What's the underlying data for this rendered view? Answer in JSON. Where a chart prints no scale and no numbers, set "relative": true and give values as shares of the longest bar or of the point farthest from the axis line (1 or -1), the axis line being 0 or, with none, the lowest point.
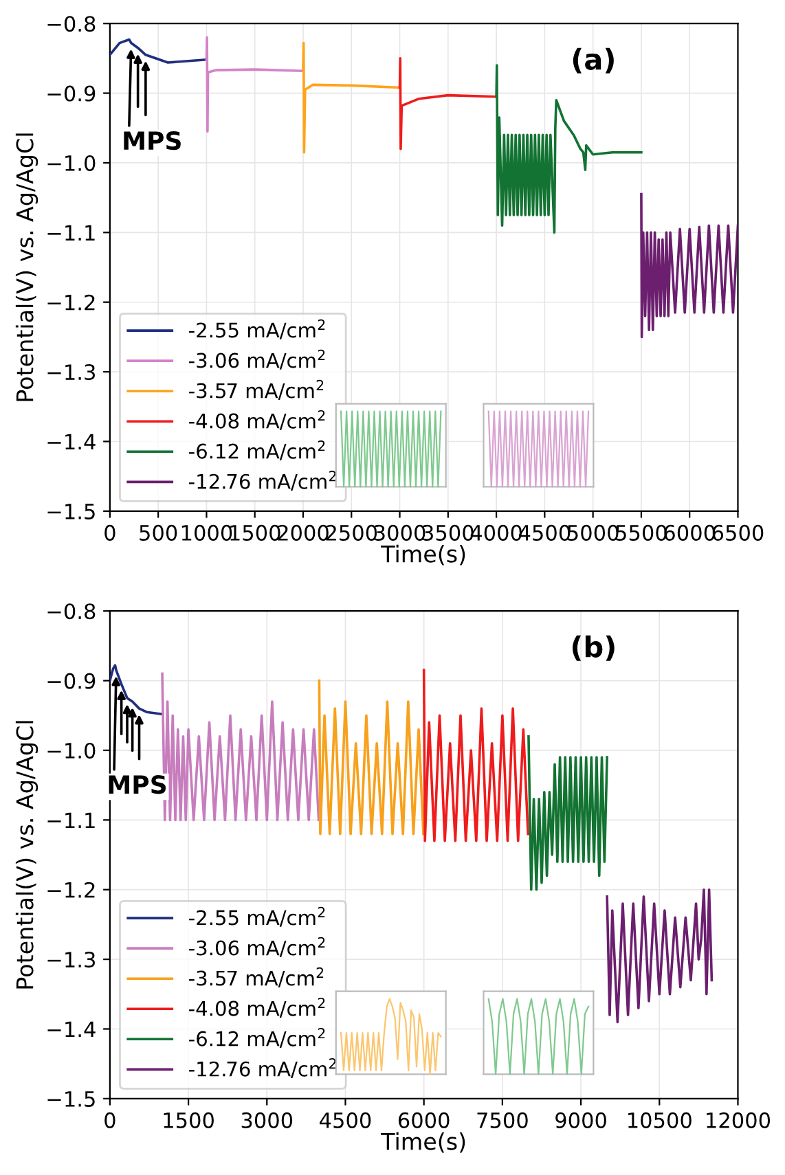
{
  "chart_data": [
    {
      "type": "line",
      "xlabel": "Time(s)",
      "ylabel": "Potential(V) vs. Ag/AgCl",
      "xlim": [
        0,
        6500
      ],
      "ylim": [
        -1.5,
        -0.8
      ],
      "xticks": [
        0,
        500,
        1000,
        1500,
        2000,
        2500,
        3000,
        3500,
        4000,
        4500,
        5000,
        5500,
        6000,
        6500
      ],
      "yticks": [
        -1.5,
        -1.4,
        -1.3,
        -1.2,
        -1.1,
        {
          "value": -1.0,
          "label": "−1.0"
        },
        -0.9,
        -0.8
      ],
      "grid": true,
      "legend": "bottom left",
      "annotations": [
        "(a)",
        {
          "text": "MPS",
          "x": 220,
          "y": -0.828
        }
      ],
      "series": [
        {
          "name": "-2.55 mA/cm$^{2}$",
          "color": "#1f2f7f",
          "x": [
            0,
            100,
            200,
            220,
            290,
            370,
            600,
            990
          ],
          "values": [
            -0.845,
            -0.828,
            -0.823,
            -0.828,
            -0.835,
            -0.845,
            -0.856,
            -0.852
          ]
        },
        {
          "name": "-3.06 mA/cm$^{2}$",
          "color": "#d383c8",
          "x": [
            1000,
            1005,
            1010,
            1015,
            1100,
            1500,
            1990
          ],
          "values": [
            -0.852,
            -0.82,
            -0.955,
            -0.87,
            -0.867,
            -0.866,
            -0.868
          ]
        },
        {
          "name": "-3.57 mA/cm$^{2}$",
          "color": "#ffa31a",
          "x": [
            2000,
            2005,
            2010,
            2020,
            2100,
            2500,
            2990
          ],
          "values": [
            -0.867,
            -0.828,
            -0.985,
            -0.895,
            -0.888,
            -0.889,
            -0.892
          ]
        },
        {
          "name": "-4.08 mA/cm$^{2}$",
          "color": "#ee1c1c",
          "x": [
            3000,
            3005,
            3010,
            3020,
            3200,
            3500,
            3990
          ],
          "values": [
            -0.892,
            -0.85,
            -0.98,
            -0.918,
            -0.908,
            -0.903,
            -0.905
          ]
        },
        {
          "name": "-6.12 mA/cm$^{2}$",
          "color": "#137333",
          "x": [
            4000,
            4005,
            4015,
            4030,
            4060,
            4080,
            4100,
            4120,
            4140,
            4160,
            4180,
            4200,
            4220,
            4240,
            4260,
            4280,
            4300,
            4320,
            4340,
            4360,
            4380,
            4400,
            4420,
            4440,
            4460,
            4480,
            4500,
            4520,
            4540,
            4560,
            4600,
            4610,
            4620,
            4700,
            4800,
            4870,
            4900,
            4920,
            4930,
            5000,
            5200,
            5500
          ],
          "values": [
            -0.905,
            -0.86,
            -1.075,
            -0.935,
            -1.09,
            -0.96,
            -1.075,
            -0.96,
            -1.075,
            -0.96,
            -1.075,
            -0.96,
            -1.075,
            -0.96,
            -1.075,
            -0.96,
            -1.075,
            -0.96,
            -1.075,
            -0.96,
            -1.075,
            -0.96,
            -1.075,
            -0.96,
            -1.075,
            -0.96,
            -1.075,
            -0.96,
            -1.075,
            -0.96,
            -1.1,
            -0.95,
            -0.91,
            -0.94,
            -0.96,
            -0.98,
            -0.985,
            -1.01,
            -0.975,
            -0.988,
            -0.985,
            -0.985
          ]
        },
        {
          "name": "-12.76 mA/cm$^{2}$",
          "color": "#6b1f6e",
          "x": [
            5500,
            5505,
            5520,
            5540,
            5560,
            5580,
            5600,
            5620,
            5640,
            5660,
            5680,
            5700,
            5720,
            5740,
            5760,
            5780,
            5800,
            5850,
            5900,
            5950,
            6000,
            6050,
            6100,
            6150,
            6200,
            6250,
            6300,
            6350,
            6400,
            6450,
            6500
          ],
          "values": [
            -1.045,
            -1.25,
            -1.1,
            -1.22,
            -1.1,
            -1.24,
            -1.1,
            -1.24,
            -1.1,
            -1.22,
            -1.11,
            -1.22,
            -1.11,
            -1.22,
            -1.1,
            -1.22,
            -1.1,
            -1.215,
            -1.095,
            -1.215,
            -1.095,
            -1.215,
            -1.092,
            -1.215,
            -1.09,
            -1.215,
            -1.09,
            -1.215,
            -1.09,
            -1.215,
            -1.09
          ]
        }
      ]
    },
    {
      "type": "line",
      "relative": true,
      "categories": [
        null,
        null,
        null,
        null,
        null,
        null,
        null,
        null,
        null,
        null,
        null,
        null,
        null,
        null,
        null,
        null,
        null,
        null,
        null,
        null,
        null,
        null,
        null,
        null,
        null,
        null,
        null,
        null,
        null,
        null,
        null,
        null,
        null,
        null,
        null,
        null,
        null
      ],
      "series": [
        {
          "color": "#7fc98f",
          "values": [
            1,
            0,
            1,
            0,
            1,
            0,
            1,
            0,
            1,
            0,
            1,
            0,
            1,
            0,
            1,
            0,
            1,
            0,
            1,
            0,
            1,
            0,
            1,
            0,
            1,
            0,
            1,
            0,
            1,
            0,
            1,
            0,
            1,
            0,
            1,
            0,
            1
          ]
        }
      ]
    },
    {
      "type": "line",
      "relative": true,
      "categories": [
        null,
        null,
        null,
        null,
        null,
        null,
        null,
        null,
        null,
        null,
        null,
        null,
        null,
        null,
        null,
        null,
        null,
        null,
        null,
        null,
        null,
        null,
        null,
        null,
        null,
        null,
        null,
        null,
        null,
        null,
        null,
        null,
        null,
        null,
        null,
        null,
        null
      ],
      "series": [
        {
          "color": "#d9a3d2",
          "values": [
            1,
            0,
            1,
            0,
            1,
            0,
            1,
            0,
            1,
            0,
            1,
            0,
            1,
            0,
            1,
            0,
            1,
            0,
            1,
            0,
            1,
            0,
            1,
            0,
            1,
            0,
            1,
            0,
            1,
            0,
            1,
            0,
            1,
            0,
            1,
            0,
            1
          ]
        }
      ]
    },
    {
      "type": "line",
      "xlabel": "Time(s)",
      "ylabel": "Potential(V) vs. Ag/AgCl",
      "xlim": [
        0,
        12000
      ],
      "ylim": [
        -1.5,
        -0.8
      ],
      "xticks": [
        0,
        1500,
        3000,
        4500,
        6000,
        7500,
        9000,
        10500,
        12000
      ],
      "yticks": [
        -1.5,
        -1.4,
        -1.3,
        -1.2,
        -1.1,
        {
          "value": -1.0,
          "label": "−1.0"
        },
        -0.9,
        -0.8
      ],
      "grid": true,
      "legend": "bottom left",
      "annotations": [
        "(b)",
        {
          "text": "MPS",
          "x": 120,
          "y": -0.885
        }
      ],
      "series": [
        {
          "name": "-2.55 mA/cm$^{2}$",
          "color": "#1f2f7f",
          "x": [
            0,
            60,
            100,
            120,
            220,
            330,
            430,
            560,
            700,
            990
          ],
          "values": [
            -0.9,
            -0.883,
            -0.878,
            -0.885,
            -0.905,
            -0.925,
            -0.93,
            -0.94,
            -0.945,
            -0.948
          ]
        },
        {
          "name": "-3.06 mA/cm$^{2}$",
          "color": "#c77dbd",
          "x": [
            1000,
            1050,
            1100,
            1150,
            1200,
            1250,
            1300,
            1350,
            1400,
            1450,
            1500,
            1600,
            1700,
            1800,
            1900,
            2000,
            2100,
            2200,
            2300,
            2400,
            2500,
            2600,
            2700,
            2800,
            2900,
            3000,
            3100,
            3200,
            3300,
            3400,
            3500,
            3600,
            3700,
            3800,
            3900,
            3990
          ],
          "values": [
            -0.89,
            -1.1,
            -0.93,
            -1.1,
            -0.95,
            -1.1,
            -0.97,
            -1.1,
            -0.98,
            -1.1,
            -0.97,
            -1.1,
            -0.98,
            -1.1,
            -0.96,
            -1.1,
            -0.98,
            -1.1,
            -0.95,
            -1.1,
            -0.97,
            -1.1,
            -0.98,
            -1.1,
            -0.95,
            -1.1,
            -0.93,
            -1.1,
            -0.96,
            -1.1,
            -0.97,
            -1.1,
            -0.97,
            -1.1,
            -0.97,
            -1.1
          ]
        },
        {
          "name": "-3.57 mA/cm$^{2}$",
          "color": "#f7a11c",
          "x": [
            4000,
            4020,
            4100,
            4200,
            4300,
            4400,
            4500,
            4600,
            4700,
            4800,
            4900,
            5000,
            5100,
            5200,
            5300,
            5400,
            5500,
            5600,
            5700,
            5800,
            5900,
            5990
          ],
          "values": [
            -0.9,
            -1.12,
            -0.95,
            -1.12,
            -0.94,
            -1.12,
            -0.93,
            -1.12,
            -0.99,
            -1.12,
            -0.95,
            -1.12,
            -0.99,
            -1.12,
            -0.93,
            -1.12,
            -0.99,
            -1.12,
            -0.93,
            -1.12,
            -0.97,
            -1.12
          ]
        },
        {
          "name": "-4.08 mA/cm$^{2}$",
          "color": "#ee1c1c",
          "x": [
            6000,
            6020,
            6100,
            6200,
            6300,
            6400,
            6500,
            6600,
            6700,
            6800,
            6900,
            7000,
            7100,
            7200,
            7300,
            7400,
            7500,
            7600,
            7700,
            7800,
            7900,
            7990
          ],
          "values": [
            -0.885,
            -1.13,
            -0.96,
            -1.13,
            -0.95,
            -1.13,
            -0.99,
            -1.13,
            -0.95,
            -1.13,
            -1.0,
            -1.13,
            -0.94,
            -1.13,
            -0.99,
            -1.13,
            -0.95,
            -1.13,
            -0.94,
            -1.13,
            -0.97,
            -1.12
          ]
        },
        {
          "name": "-6.12 mA/cm$^{2}$",
          "color": "#137333",
          "x": [
            8000,
            8050,
            8100,
            8150,
            8200,
            8250,
            8300,
            8350,
            8400,
            8450,
            8500,
            8550,
            8600,
            8650,
            8700,
            8750,
            8800,
            8850,
            8900,
            8950,
            9000,
            9050,
            9100,
            9150,
            9200,
            9250,
            9300,
            9350,
            9400,
            9450,
            9500
          ],
          "values": [
            -0.98,
            -1.2,
            -1.07,
            -1.2,
            -1.07,
            -1.19,
            -1.06,
            -1.18,
            -1.06,
            -1.15,
            -1.02,
            -1.16,
            -1.01,
            -1.16,
            -1.01,
            -1.16,
            -1.01,
            -1.16,
            -1.01,
            -1.16,
            -1.01,
            -1.16,
            -1.01,
            -1.16,
            -1.01,
            -1.16,
            -1.01,
            -1.18,
            -1.01,
            -1.16,
            -1.01
          ]
        },
        {
          "name": "-12.76 mA/cm$^{2}$",
          "color": "#6b1f6e",
          "x": [
            9500,
            9550,
            9600,
            9700,
            9800,
            9900,
            10000,
            10100,
            10200,
            10300,
            10400,
            10500,
            10600,
            10700,
            10800,
            10900,
            11000,
            11100,
            11200,
            11250,
            11300,
            11350,
            11400,
            11450,
            11500
          ],
          "values": [
            -1.21,
            -1.38,
            -1.23,
            -1.39,
            -1.22,
            -1.38,
            -1.22,
            -1.37,
            -1.21,
            -1.36,
            -1.22,
            -1.35,
            -1.23,
            -1.35,
            -1.24,
            -1.34,
            -1.24,
            -1.33,
            -1.22,
            -1.3,
            -1.27,
            -1.2,
            -1.35,
            -1.2,
            -1.33
          ]
        }
      ]
    },
    {
      "type": "line",
      "relative": true,
      "categories": [
        null,
        null,
        null,
        null,
        null,
        null,
        null,
        null,
        null,
        null,
        null,
        null,
        null,
        null,
        null,
        null,
        null,
        null,
        null,
        null,
        null,
        null,
        null,
        null,
        null,
        null,
        null,
        null,
        null,
        null,
        null,
        null,
        null,
        null,
        null,
        null,
        null,
        null
      ],
      "series": [
        {
          "color": "#fbc66e",
          "values": [
            0.55,
            0.05,
            0.55,
            0.05,
            0.55,
            0.05,
            0.55,
            0.05,
            0.55,
            0.05,
            0.55,
            0.05,
            0.55,
            0.05,
            0.55,
            0.05,
            0.55,
            0.9,
            1.0,
            0.9,
            0.75,
            0.2,
            0.95,
            0.85,
            0.7,
            0.05,
            0.85,
            0.75,
            0.1,
            0.8,
            0.6,
            0.05,
            0.55,
            0.0,
            0.55,
            0.05,
            0.55,
            0.5
          ]
        }
      ]
    },
    {
      "type": "line",
      "relative": true,
      "categories": [
        null,
        null,
        null,
        null,
        null,
        null,
        null,
        null,
        null,
        null,
        null,
        null,
        null,
        null,
        null,
        null,
        null,
        null,
        null,
        null,
        null,
        null,
        null,
        null,
        null,
        null,
        null,
        null,
        null
      ],
      "series": [
        {
          "color": "#7fc98f",
          "values": [
            1,
            0.7,
            0,
            0.8,
            1,
            0.7,
            0,
            0.8,
            1,
            0.7,
            0,
            0.8,
            1,
            0.7,
            0,
            0.8,
            1,
            0.7,
            0,
            0.8,
            1,
            0.7,
            0,
            0.8,
            1,
            0.7,
            0,
            0.8,
            0.9
          ]
        }
      ]
    }
  ]
}
